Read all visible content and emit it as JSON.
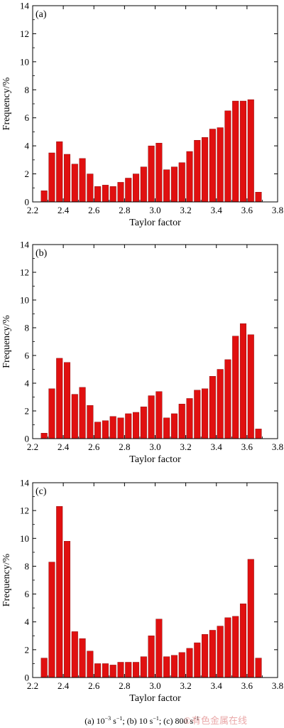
{
  "chart_data": [
    {
      "type": "bar",
      "panel_label": "(a)",
      "xlabel": "Taylor factor",
      "ylabel": "Frequency/%",
      "xlim": [
        2.2,
        3.8
      ],
      "ylim": [
        0,
        14
      ],
      "xticks": [
        "2.2",
        "2.4",
        "2.6",
        "2.8",
        "3.0",
        "3.2",
        "3.4",
        "3.6",
        "3.8"
      ],
      "yticks": [
        "0",
        "2",
        "4",
        "6",
        "8",
        "10",
        "12",
        "14"
      ],
      "bar_color": "#e01010",
      "x": [
        2.275,
        2.325,
        2.375,
        2.425,
        2.475,
        2.525,
        2.575,
        2.625,
        2.675,
        2.725,
        2.775,
        2.825,
        2.875,
        2.925,
        2.975,
        3.025,
        3.075,
        3.125,
        3.175,
        3.225,
        3.275,
        3.325,
        3.375,
        3.425,
        3.475,
        3.525,
        3.575,
        3.625,
        3.675
      ],
      "values": [
        0.8,
        3.5,
        4.3,
        3.4,
        2.7,
        3.1,
        2.0,
        1.1,
        1.2,
        1.1,
        1.4,
        1.7,
        2.0,
        2.5,
        4.0,
        4.2,
        2.3,
        2.5,
        2.8,
        3.6,
        4.4,
        4.6,
        5.2,
        5.3,
        6.5,
        7.2,
        7.2,
        7.3,
        0.7
      ]
    },
    {
      "type": "bar",
      "panel_label": "(b)",
      "xlabel": "Taylor factor",
      "ylabel": "Frequency/%",
      "xlim": [
        2.2,
        3.8
      ],
      "ylim": [
        0,
        14
      ],
      "xticks": [
        "2.2",
        "2.4",
        "2.6",
        "2.8",
        "3.0",
        "3.2",
        "3.4",
        "3.6",
        "3.8"
      ],
      "yticks": [
        "0",
        "2",
        "4",
        "6",
        "8",
        "10",
        "12",
        "14"
      ],
      "bar_color": "#e01010",
      "x": [
        2.275,
        2.325,
        2.375,
        2.425,
        2.475,
        2.525,
        2.575,
        2.625,
        2.675,
        2.725,
        2.775,
        2.825,
        2.875,
        2.925,
        2.975,
        3.025,
        3.075,
        3.125,
        3.175,
        3.225,
        3.275,
        3.325,
        3.375,
        3.425,
        3.475,
        3.525,
        3.575,
        3.625,
        3.675
      ],
      "values": [
        0.4,
        3.6,
        5.8,
        5.5,
        3.2,
        3.7,
        2.4,
        1.2,
        1.3,
        1.6,
        1.5,
        1.8,
        1.9,
        2.3,
        3.1,
        3.4,
        1.5,
        1.8,
        2.5,
        2.9,
        3.5,
        3.6,
        4.5,
        5.0,
        5.7,
        7.4,
        8.3,
        7.5,
        0.7
      ]
    },
    {
      "type": "bar",
      "panel_label": "(c)",
      "xlabel": "Taylor factor",
      "ylabel": "Frequency/%",
      "xlim": [
        2.2,
        3.8
      ],
      "ylim": [
        0,
        14
      ],
      "xticks": [
        "2.2",
        "2.4",
        "2.6",
        "2.8",
        "3.0",
        "3.2",
        "3.4",
        "3.6",
        "3.8"
      ],
      "yticks": [
        "0",
        "2",
        "4",
        "6",
        "8",
        "10",
        "12",
        "14"
      ],
      "bar_color": "#e01010",
      "x": [
        2.275,
        2.325,
        2.375,
        2.425,
        2.475,
        2.525,
        2.575,
        2.625,
        2.675,
        2.725,
        2.775,
        2.825,
        2.875,
        2.925,
        2.975,
        3.025,
        3.075,
        3.125,
        3.175,
        3.225,
        3.275,
        3.325,
        3.375,
        3.425,
        3.475,
        3.525,
        3.575,
        3.625,
        3.675
      ],
      "values": [
        1.4,
        8.3,
        12.3,
        9.8,
        3.3,
        2.8,
        1.9,
        1.0,
        1.0,
        0.9,
        1.1,
        1.1,
        1.1,
        1.5,
        3.0,
        4.2,
        1.5,
        1.6,
        1.8,
        2.1,
        2.5,
        3.1,
        3.4,
        3.7,
        4.3,
        4.4,
        5.3,
        8.5,
        1.4
      ]
    }
  ],
  "caption": {
    "a_label": "(a) 10",
    "a_exp": "−3",
    "unit1": " s",
    "unit1_exp": "−1",
    "b_label": ";  (b) 10 s",
    "b_exp": "−1",
    "c_label": "; (c) 800 s",
    "c_exp": "−1"
  },
  "watermark": {
    "symbol": "©",
    "text": "有色金属在线"
  }
}
